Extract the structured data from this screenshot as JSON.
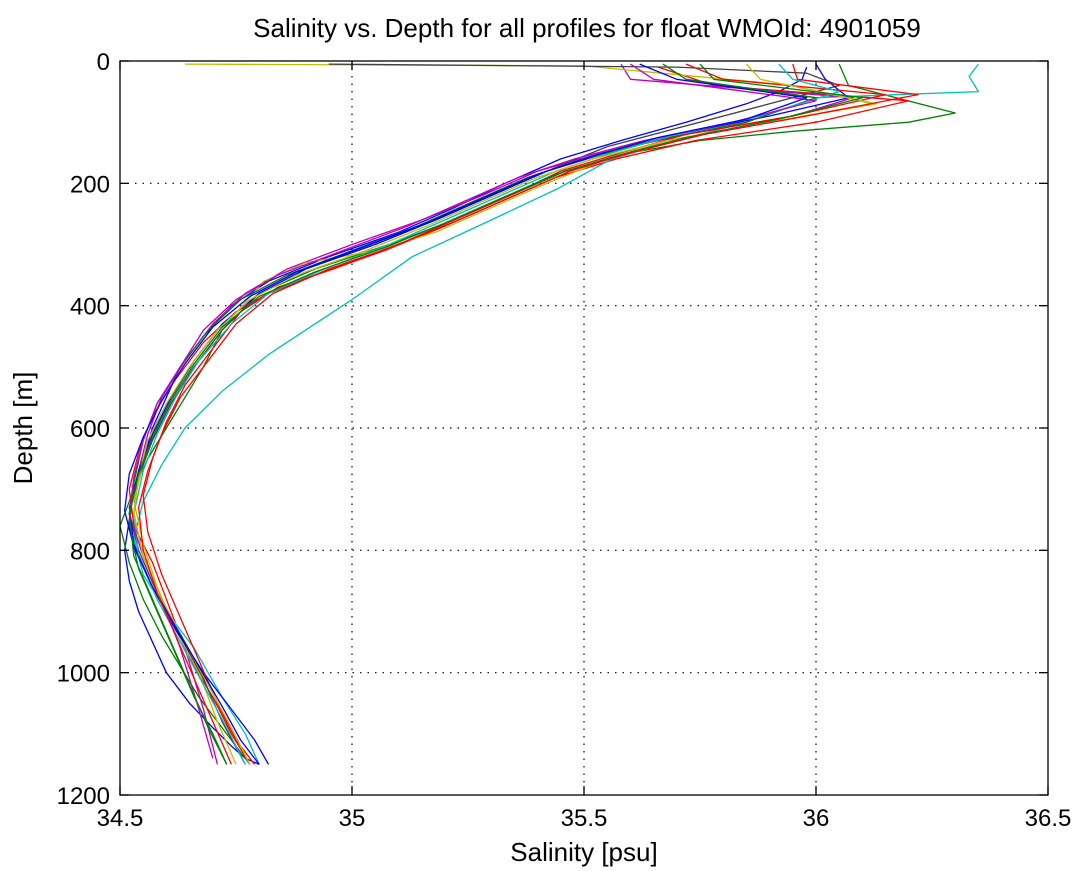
{
  "chart_data": {
    "type": "line",
    "title": "Salinity vs. Depth for all profiles for float WMOId: 4901059",
    "xlabel": "Salinity [psu]",
    "ylabel": "Depth [m]",
    "xlim": [
      34.5,
      36.5
    ],
    "ylim": [
      0,
      1200
    ],
    "y_reversed": true,
    "grid": true,
    "legend": "none",
    "xticks": [
      34.5,
      35,
      35.5,
      36,
      36.5
    ],
    "xtick_labels": [
      "34.5",
      "35",
      "35.5",
      "36",
      "36.5"
    ],
    "yticks": [
      0,
      200,
      400,
      600,
      800,
      1000,
      1200
    ],
    "ytick_labels": [
      "0",
      "200",
      "400",
      "600",
      "800",
      "1000",
      "1200"
    ],
    "series": [
      {
        "color": "#0000ff",
        "x": [
          35.98,
          35.97,
          35.92,
          35.85,
          35.72,
          35.58,
          35.45,
          35.33,
          35.22,
          35.1,
          34.95,
          34.82,
          34.74,
          34.68,
          34.63,
          34.6,
          34.57,
          34.55,
          34.53,
          34.52,
          34.51,
          34.52,
          34.54,
          34.57,
          34.6,
          34.65,
          34.7,
          34.74,
          34.77,
          34.8
        ],
        "y": [
          10,
          30,
          50,
          70,
          100,
          130,
          160,
          200,
          240,
          280,
          320,
          360,
          400,
          450,
          500,
          550,
          600,
          650,
          700,
          750,
          800,
          850,
          900,
          950,
          1000,
          1050,
          1090,
          1120,
          1140,
          1150
        ]
      },
      {
        "color": "#008000",
        "x": [
          36.05,
          36.07,
          36.3,
          36.2,
          35.95,
          35.75,
          35.6,
          35.46,
          35.34,
          35.22,
          35.08,
          34.92,
          34.8,
          34.72,
          34.68,
          34.64,
          34.6,
          34.56,
          34.53,
          34.5,
          34.52,
          34.55,
          34.59,
          34.63,
          34.67,
          34.71,
          34.75,
          34.78
        ],
        "y": [
          5,
          40,
          85,
          100,
          115,
          130,
          150,
          180,
          220,
          260,
          300,
          340,
          380,
          440,
          500,
          550,
          600,
          650,
          700,
          760,
          820,
          880,
          940,
          990,
          1040,
          1080,
          1120,
          1150
        ]
      },
      {
        "color": "#ff0000",
        "x": [
          35.66,
          35.78,
          36.2,
          36.0,
          35.74,
          35.57,
          35.44,
          35.32,
          35.2,
          35.07,
          34.92,
          34.82,
          34.75,
          34.68,
          34.62,
          34.57,
          34.54,
          34.52,
          34.53,
          34.57,
          34.6,
          34.63,
          34.66,
          34.7,
          34.74,
          34.78
        ],
        "y": [
          10,
          40,
          65,
          100,
          130,
          160,
          190,
          230,
          270,
          310,
          350,
          380,
          410,
          460,
          520,
          580,
          640,
          700,
          760,
          820,
          880,
          940,
          990,
          1040,
          1100,
          1150
        ]
      },
      {
        "color": "#00bfbf",
        "x": [
          36.35,
          36.33,
          36.35,
          36.0,
          35.85,
          35.7,
          35.56,
          35.44,
          35.3,
          35.13,
          35.0,
          34.9,
          34.82,
          34.72,
          34.64,
          34.59,
          34.55,
          34.53,
          34.55,
          34.6,
          34.66,
          34.72,
          34.77,
          34.8
        ],
        "y": [
          5,
          25,
          50,
          60,
          100,
          130,
          160,
          210,
          260,
          320,
          390,
          440,
          480,
          540,
          600,
          660,
          720,
          780,
          840,
          900,
          960,
          1040,
          1100,
          1150
        ]
      },
      {
        "color": "#bf00bf",
        "x": [
          35.58,
          35.6,
          36.08,
          35.95,
          35.72,
          35.54,
          35.4,
          35.28,
          35.15,
          35.0,
          34.86,
          34.77,
          34.7,
          34.64,
          34.59,
          34.56,
          34.54,
          34.53,
          34.55,
          34.59,
          34.64,
          34.68,
          34.71
        ],
        "y": [
          5,
          30,
          60,
          90,
          120,
          150,
          180,
          220,
          260,
          300,
          340,
          380,
          430,
          490,
          550,
          610,
          670,
          740,
          810,
          880,
          960,
          1060,
          1150
        ]
      },
      {
        "color": "#bfbf00",
        "x": [
          34.64,
          35.5,
          35.95,
          36.12,
          35.9,
          35.68,
          35.55,
          35.42,
          35.3,
          35.18,
          35.05,
          34.9,
          34.81,
          34.74,
          34.68,
          34.62,
          34.58,
          34.55,
          34.53,
          34.55,
          34.58,
          34.62,
          34.67,
          34.71,
          34.75
        ],
        "y": [
          5,
          8,
          40,
          70,
          100,
          130,
          160,
          200,
          240,
          280,
          310,
          330,
          360,
          420,
          480,
          540,
          600,
          660,
          720,
          790,
          860,
          930,
          1000,
          1080,
          1150
        ]
      },
      {
        "color": "#404040",
        "x": [
          34.95,
          35.7,
          35.98,
          36.05,
          35.9,
          35.7,
          35.55,
          35.42,
          35.3,
          35.18,
          35.04,
          34.9,
          34.8,
          34.72,
          34.66,
          34.61,
          34.57,
          34.54,
          34.52,
          34.54,
          34.58,
          34.63,
          34.68,
          34.72,
          34.77
        ],
        "y": [
          5,
          10,
          20,
          40,
          70,
          110,
          140,
          180,
          220,
          260,
          300,
          340,
          380,
          440,
          500,
          560,
          620,
          680,
          740,
          800,
          870,
          940,
          1010,
          1080,
          1150
        ]
      },
      {
        "color": "#0000ff",
        "x": [
          36.0,
          36.02,
          36.07,
          35.9,
          35.7,
          35.55,
          35.42,
          35.3,
          35.18,
          35.05,
          34.9,
          34.8,
          34.72,
          34.66,
          34.61,
          34.57,
          34.54,
          34.52,
          34.53,
          34.57,
          34.62,
          34.68,
          34.74,
          34.79,
          34.82
        ],
        "y": [
          5,
          30,
          60,
          90,
          120,
          150,
          180,
          220,
          260,
          300,
          340,
          380,
          430,
          490,
          550,
          610,
          670,
          730,
          790,
          860,
          930,
          1000,
          1060,
          1110,
          1150
        ]
      },
      {
        "color": "#008000",
        "x": [
          35.67,
          35.72,
          36.0,
          35.85,
          35.65,
          35.5,
          35.38,
          35.26,
          35.14,
          35.0,
          34.86,
          34.76,
          34.69,
          34.63,
          34.58,
          34.55,
          34.53,
          34.52,
          34.54,
          34.58,
          34.62,
          34.66,
          34.7,
          34.73
        ],
        "y": [
          5,
          30,
          60,
          100,
          130,
          160,
          190,
          230,
          270,
          310,
          350,
          390,
          440,
          500,
          560,
          620,
          690,
          760,
          830,
          900,
          970,
          1040,
          1100,
          1150
        ]
      },
      {
        "color": "#ff0000",
        "x": [
          35.72,
          35.8,
          36.15,
          35.95,
          35.72,
          35.58,
          35.45,
          35.34,
          35.22,
          35.1,
          34.96,
          34.84,
          34.76,
          34.7,
          34.64,
          34.6,
          34.57,
          34.55,
          34.56,
          34.59,
          34.63,
          34.67,
          34.71,
          34.75,
          34.79
        ],
        "y": [
          5,
          30,
          55,
          90,
          120,
          150,
          180,
          220,
          260,
          300,
          340,
          370,
          410,
          470,
          530,
          590,
          650,
          710,
          770,
          840,
          910,
          980,
          1050,
          1110,
          1150
        ]
      },
      {
        "color": "#00bfbf",
        "x": [
          35.92,
          35.95,
          36.05,
          35.88,
          35.7,
          35.56,
          35.44,
          35.32,
          35.2,
          35.08,
          34.94,
          34.82,
          34.74,
          34.67,
          34.62,
          34.58,
          34.55,
          34.53,
          34.54,
          34.58,
          34.63,
          34.68,
          34.73,
          34.77
        ],
        "y": [
          5,
          30,
          50,
          90,
          120,
          150,
          180,
          220,
          260,
          300,
          340,
          380,
          430,
          490,
          550,
          610,
          670,
          740,
          810,
          880,
          950,
          1020,
          1090,
          1150
        ]
      },
      {
        "color": "#bf00bf",
        "x": [
          35.6,
          35.65,
          36.0,
          35.82,
          35.63,
          35.48,
          35.36,
          35.24,
          35.12,
          34.98,
          34.84,
          34.75,
          34.68,
          34.63,
          34.58,
          34.55,
          34.53,
          34.52,
          34.55,
          34.59,
          34.63,
          34.67,
          34.7
        ],
        "y": [
          5,
          30,
          65,
          100,
          130,
          160,
          190,
          230,
          270,
          310,
          350,
          390,
          440,
          500,
          560,
          620,
          680,
          740,
          810,
          880,
          960,
          1060,
          1140
        ]
      },
      {
        "color": "#bfbf00",
        "x": [
          35.85,
          35.88,
          36.13,
          35.9,
          35.68,
          35.52,
          35.4,
          35.28,
          35.16,
          35.03,
          34.88,
          34.78,
          34.71,
          34.65,
          34.6,
          34.56,
          34.54,
          34.53,
          34.55,
          34.59,
          34.64,
          34.69,
          34.74,
          34.78
        ],
        "y": [
          5,
          30,
          70,
          100,
          130,
          160,
          190,
          230,
          270,
          310,
          350,
          390,
          440,
          500,
          560,
          620,
          680,
          740,
          810,
          880,
          950,
          1020,
          1090,
          1150
        ]
      },
      {
        "color": "#0000ff",
        "x": [
          35.62,
          35.7,
          35.98,
          35.85,
          35.66,
          35.52,
          35.4,
          35.28,
          35.16,
          35.02,
          34.88,
          34.78,
          34.7,
          34.64,
          34.59,
          34.55,
          34.52,
          34.51,
          34.53,
          34.57,
          34.62,
          34.67,
          34.72,
          34.76,
          34.8
        ],
        "y": [
          5,
          30,
          60,
          95,
          125,
          155,
          185,
          225,
          265,
          305,
          345,
          385,
          435,
          495,
          555,
          615,
          675,
          735,
          795,
          860,
          925,
          990,
          1055,
          1110,
          1150
        ]
      },
      {
        "color": "#008000",
        "x": [
          35.75,
          35.78,
          36.1,
          35.92,
          35.72,
          35.57,
          35.44,
          35.32,
          35.2,
          35.07,
          34.92,
          34.8,
          34.72,
          34.66,
          34.61,
          34.57,
          34.54,
          34.52,
          34.53,
          34.57,
          34.61,
          34.65,
          34.69,
          34.73
        ],
        "y": [
          5,
          30,
          60,
          95,
          125,
          155,
          185,
          225,
          265,
          305,
          345,
          385,
          435,
          495,
          555,
          615,
          675,
          740,
          810,
          880,
          950,
          1020,
          1090,
          1150
        ]
      },
      {
        "color": "#ff0000",
        "x": [
          35.95,
          35.96,
          36.22,
          35.98,
          35.76,
          35.6,
          35.47,
          35.35,
          35.23,
          35.1,
          34.95,
          34.83,
          34.75,
          34.69,
          34.63,
          34.59,
          34.56,
          34.54,
          34.55,
          34.58,
          34.62,
          34.66,
          34.7,
          34.74
        ],
        "y": [
          5,
          30,
          55,
          90,
          120,
          150,
          180,
          220,
          260,
          300,
          340,
          380,
          430,
          490,
          550,
          610,
          670,
          730,
          800,
          870,
          940,
          1010,
          1080,
          1150
        ]
      }
    ]
  }
}
